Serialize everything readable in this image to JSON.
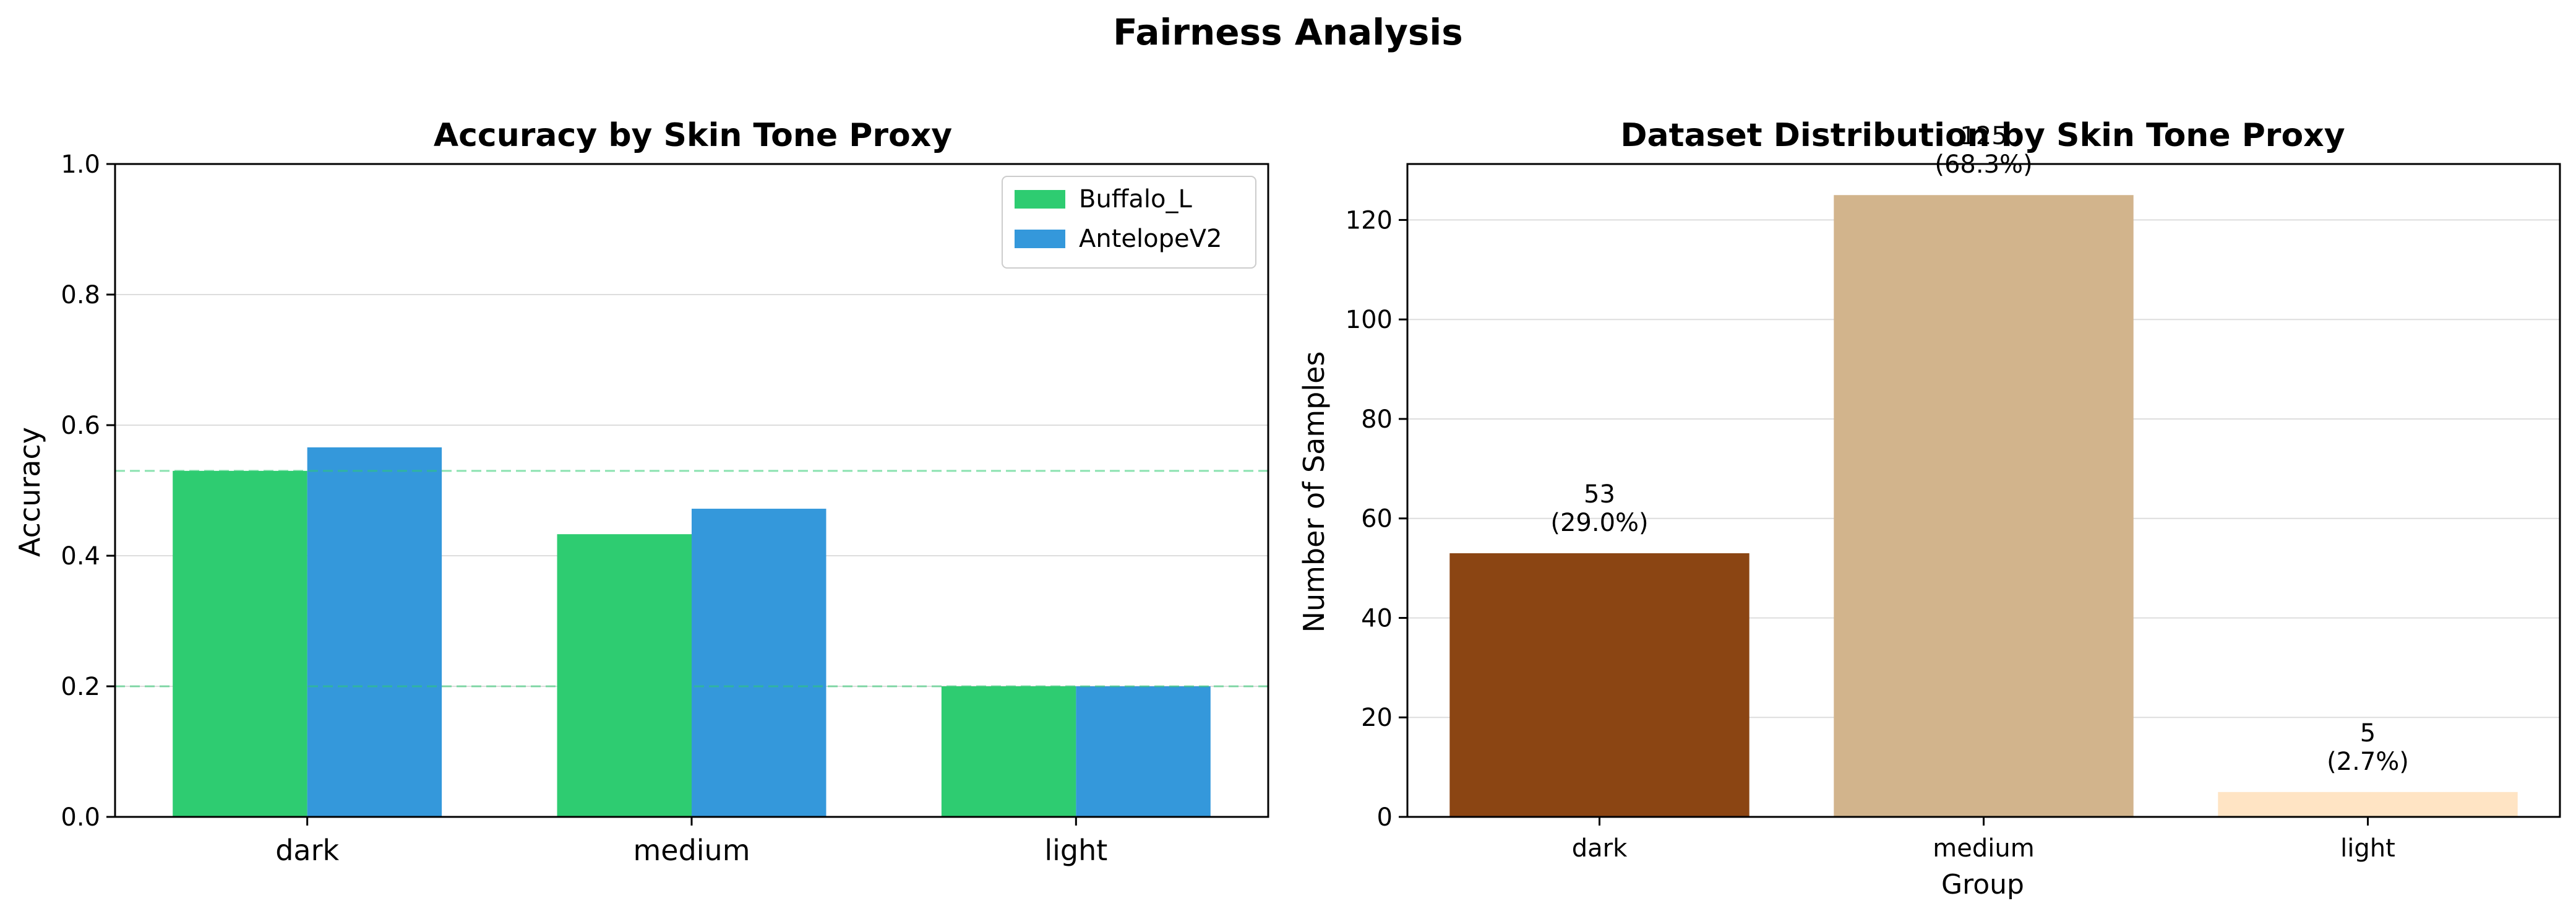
{
  "figure": {
    "suptitle": "Fairness Analysis"
  },
  "chart_data": [
    {
      "type": "bar",
      "title": "Accuracy by Skin Tone Proxy",
      "xlabel": "",
      "ylabel": "Accuracy",
      "ylim": [
        0,
        1.0
      ],
      "yticks": [
        "0.0",
        "0.2",
        "0.4",
        "0.6",
        "0.8",
        "1.0"
      ],
      "categories": [
        "dark",
        "medium",
        "light"
      ],
      "series": [
        {
          "name": "Buffalo_L",
          "values": [
            0.53,
            0.433,
            0.2
          ],
          "color": "#2ecc71"
        },
        {
          "name": "AntelopeV2",
          "values": [
            0.566,
            0.472,
            0.2
          ],
          "color": "#3498db"
        }
      ],
      "reference_lines": [
        {
          "y": 0.53,
          "color": "#2ecc71",
          "style": "dashed"
        },
        {
          "y": 0.2,
          "color": "#2ecc71",
          "style": "dashed"
        }
      ],
      "legend_position": "top-right",
      "grid": "y"
    },
    {
      "type": "bar",
      "title": "Dataset Distribution by Skin Tone Proxy",
      "xlabel": "Group",
      "ylabel": "Number of Samples",
      "ylim": [
        0,
        131.25
      ],
      "yticks": [
        "0",
        "20",
        "40",
        "60",
        "80",
        "100",
        "120"
      ],
      "categories": [
        "dark",
        "medium",
        "light"
      ],
      "values": [
        53,
        125,
        5
      ],
      "colors": [
        "#8b4513",
        "#d2b48c",
        "#ffe4c4"
      ],
      "data_labels": [
        [
          "53",
          "(29.0%)"
        ],
        [
          "125",
          "(68.3%)"
        ],
        [
          "5",
          "(2.7%)"
        ]
      ],
      "grid": "y"
    }
  ]
}
